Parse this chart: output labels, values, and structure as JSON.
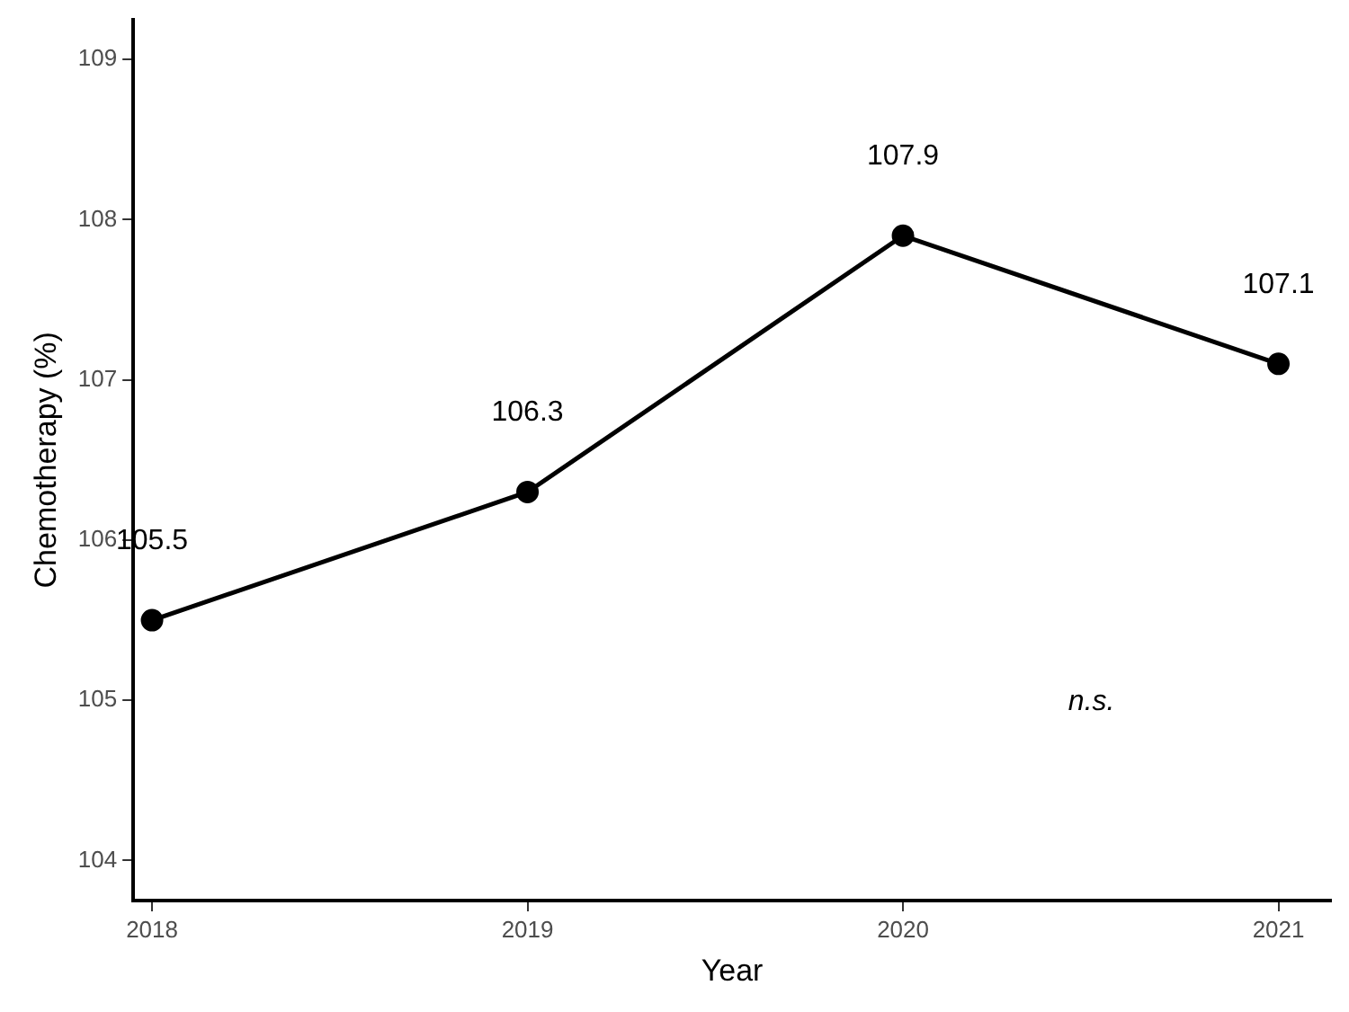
{
  "chart_data": {
    "type": "line",
    "xlabel": "Year",
    "ylabel": "Chemotherapy (%)",
    "x": [
      2018,
      2019,
      2020,
      2021
    ],
    "series": [
      {
        "color": "#000000",
        "values": [
          105.5,
          106.3,
          107.9,
          107.1
        ]
      }
    ],
    "xlim": [
      2017.95,
      2021.14
    ],
    "xticks": [
      2018,
      2019,
      2020,
      2021
    ],
    "ylim": [
      103.75,
      109.25
    ],
    "yticks": [
      104,
      105,
      106,
      107,
      108,
      109
    ],
    "grid": false,
    "legend": false,
    "marker": "circle",
    "line_style": "solid",
    "data_labels": true,
    "annotations": [
      "n.s."
    ]
  }
}
